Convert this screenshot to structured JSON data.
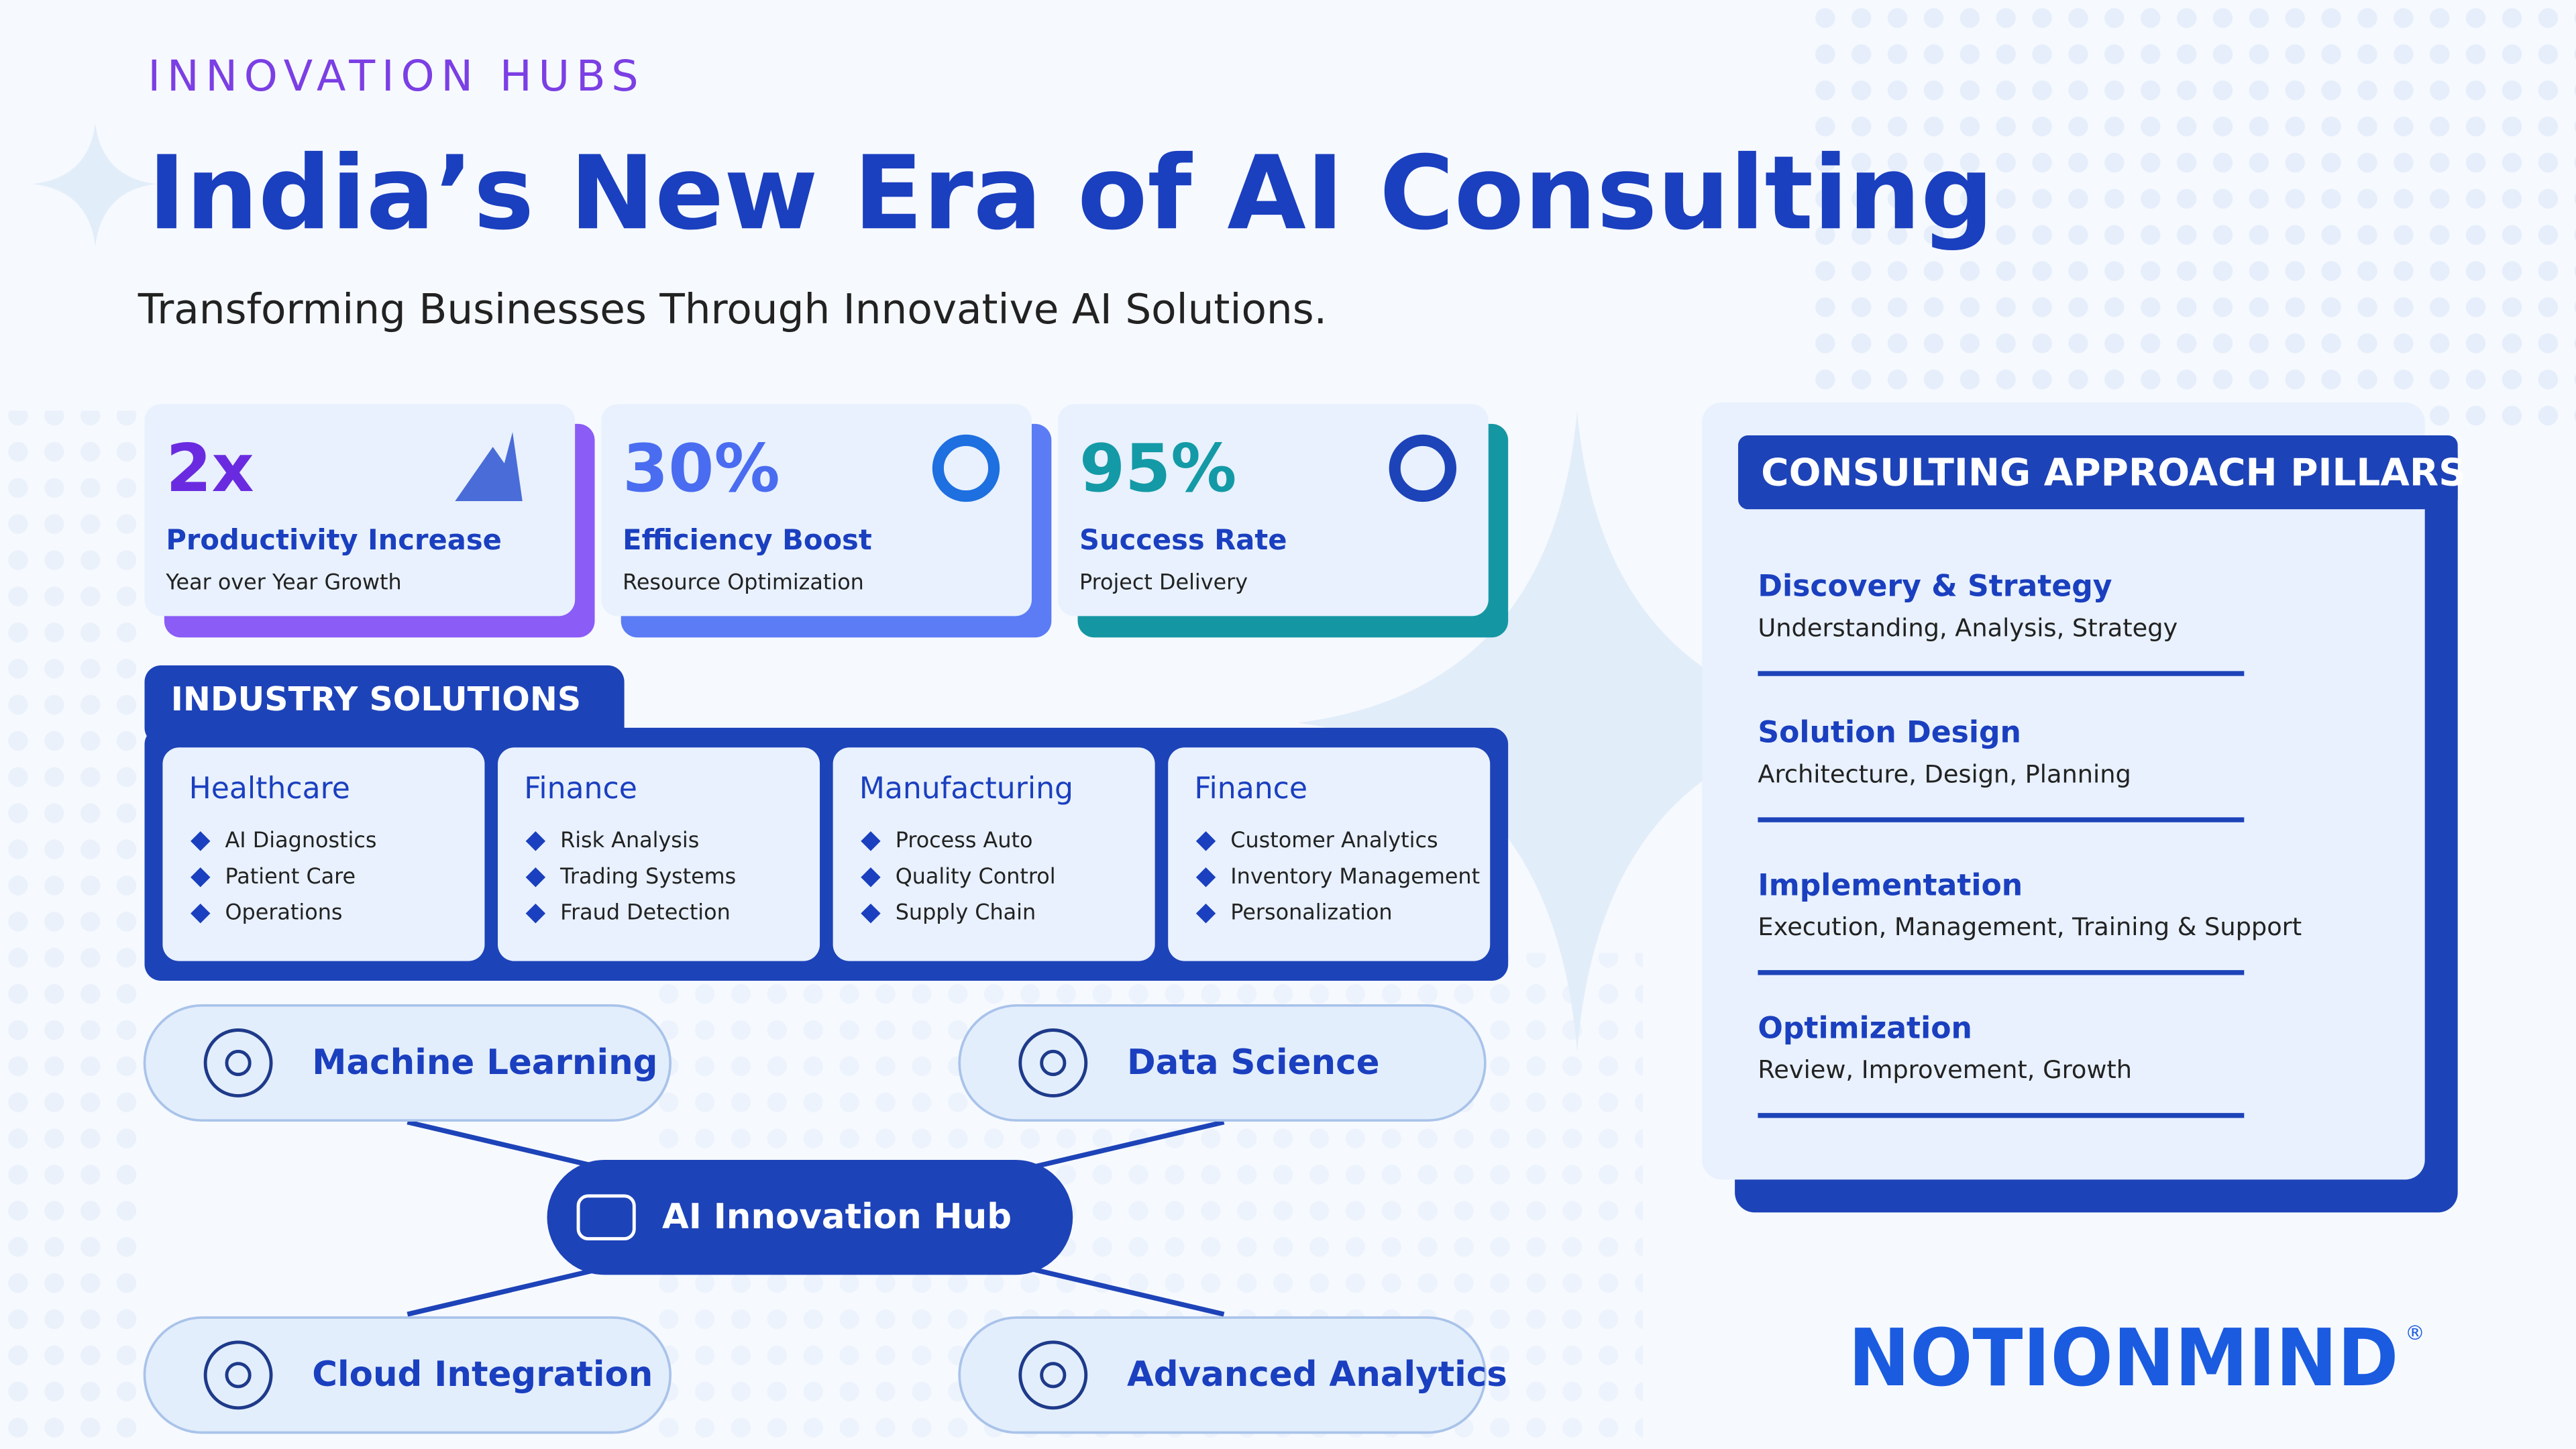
{
  "header": {
    "kicker": "INNOVATION HUBS",
    "title": "India’s New Era of AI Consulting",
    "subtitle": "Transforming Businesses Through Innovative AI Solutions."
  },
  "stats": [
    {
      "value": "2x",
      "label": "Productivity Increase",
      "sub": "Year over Year Growth"
    },
    {
      "value": "30%",
      "label": "Efficiency Boost",
      "sub": "Resource Optimization"
    },
    {
      "value": "95%",
      "label": "Success Rate",
      "sub": "Project Delivery"
    }
  ],
  "industry": {
    "title": "INDUSTRY SOLUTIONS",
    "cards": [
      {
        "title": "Healthcare",
        "items": [
          "AI Diagnostics",
          "Patient Care",
          "Operations"
        ]
      },
      {
        "title": "Finance",
        "items": [
          "Risk Analysis",
          "Trading Systems",
          "Fraud Detection"
        ]
      },
      {
        "title": "Manufacturing",
        "items": [
          "Process Auto",
          "Quality Control",
          "Supply Chain"
        ]
      },
      {
        "title": "Finance",
        "items": [
          "Customer Analytics",
          "Inventory Management",
          "Personalization"
        ]
      }
    ]
  },
  "hub": {
    "center": "AI Innovation Hub",
    "nodes": [
      "Machine Learning",
      "Data Science",
      "Cloud Integration",
      "Advanced Analytics"
    ]
  },
  "pillars": {
    "title": "CONSULTING APPROACH PILLARS",
    "items": [
      {
        "title": "Discovery & Strategy",
        "desc": "Understanding, Analysis, Strategy"
      },
      {
        "title": "Solution Design",
        "desc": "Architecture, Design, Planning"
      },
      {
        "title": "Implementation",
        "desc": "Execution, Management, Training & Support"
      },
      {
        "title": "Optimization",
        "desc": "Review, Improvement, Growth"
      }
    ]
  },
  "logo": {
    "text": "NOTIONMIND",
    "mark": "®"
  }
}
